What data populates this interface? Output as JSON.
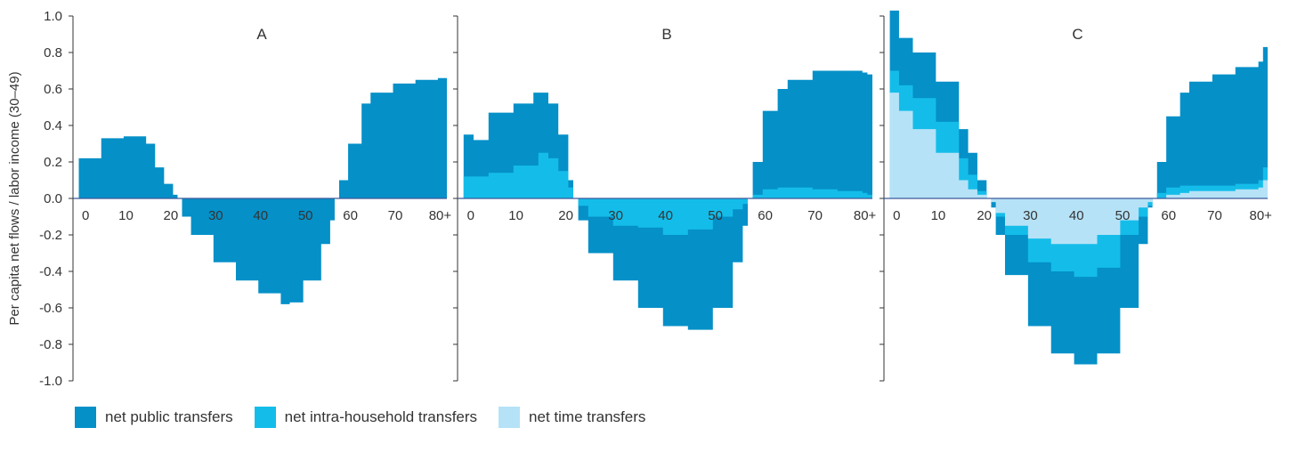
{
  "chart_data": {
    "type": "area",
    "ylabel": "Per capita net flows / labor income (30–49)",
    "ylim": [
      -1.0,
      1.0
    ],
    "yticks": [
      1.0,
      0.8,
      0.6,
      0.4,
      0.2,
      0.0,
      -0.2,
      -0.4,
      -0.6,
      -0.8,
      -1.0
    ],
    "ytick_labels": [
      "1.0",
      "0.8",
      "0.6",
      "0.4",
      "0.2",
      "0.0",
      "-0.2",
      "-0.4",
      "-0.6",
      "-0.8",
      "-1.0"
    ],
    "xlim": [
      -1,
      81.5
    ],
    "xticks": [
      0,
      10,
      20,
      30,
      40,
      50,
      60,
      70,
      80
    ],
    "xtick_labels": [
      "0",
      "10",
      "20",
      "30",
      "40",
      "50",
      "60",
      "70",
      "80+"
    ],
    "stacking": "total public transfers contain intra-household transfers, which contain time transfers",
    "legend": [
      {
        "name": "net public transfers",
        "color": "#0590c8"
      },
      {
        "name": "net intra-household transfers",
        "color": "#14bde9"
      },
      {
        "name": "net time transfers",
        "color": "#b6e2f7"
      }
    ],
    "panels": [
      {
        "title": "A",
        "layers": [
          {
            "series": "net public transfers",
            "x": [
              0,
              5,
              10,
              15,
              17,
              19,
              21,
              22,
              23,
              25,
              30,
              35,
              40,
              45,
              47,
              50,
              54,
              56,
              57,
              58,
              60,
              63,
              65,
              70,
              75,
              80,
              81
            ],
            "y": [
              0.22,
              0.33,
              0.34,
              0.3,
              0.17,
              0.08,
              0.02,
              0.0,
              -0.1,
              -0.2,
              -0.35,
              -0.45,
              -0.52,
              -0.58,
              -0.57,
              -0.45,
              -0.25,
              -0.12,
              0.0,
              0.1,
              0.3,
              0.52,
              0.58,
              0.63,
              0.65,
              0.66,
              0.66
            ]
          }
        ]
      },
      {
        "title": "B",
        "layers": [
          {
            "series": "net public transfers",
            "x": [
              0,
              2,
              5,
              10,
              14,
              17,
              19,
              21,
              22,
              23,
              25,
              30,
              35,
              40,
              45,
              50,
              54,
              56,
              57,
              58,
              60,
              63,
              65,
              70,
              75,
              80,
              81
            ],
            "y": [
              0.35,
              0.32,
              0.47,
              0.52,
              0.58,
              0.52,
              0.35,
              0.1,
              0.0,
              -0.12,
              -0.3,
              -0.45,
              -0.6,
              -0.7,
              -0.72,
              -0.6,
              -0.35,
              -0.15,
              0.0,
              0.2,
              0.48,
              0.6,
              0.65,
              0.7,
              0.7,
              0.69,
              0.68
            ]
          },
          {
            "series": "net intra-household transfers",
            "x": [
              0,
              5,
              10,
              15,
              17,
              19,
              21,
              22,
              23,
              25,
              30,
              35,
              40,
              45,
              50,
              54,
              56,
              57,
              58,
              60,
              63,
              65,
              70,
              75,
              80,
              81
            ],
            "y": [
              0.12,
              0.14,
              0.18,
              0.25,
              0.22,
              0.15,
              0.06,
              0.0,
              -0.04,
              -0.1,
              -0.15,
              -0.16,
              -0.2,
              -0.17,
              -0.1,
              -0.06,
              -0.03,
              0.0,
              0.02,
              0.05,
              0.06,
              0.06,
              0.05,
              0.04,
              0.03,
              0.02
            ]
          }
        ]
      },
      {
        "title": "C",
        "layers": [
          {
            "series": "net public transfers",
            "x": [
              0,
              2,
              5,
              10,
              15,
              17,
              19,
              21,
              22,
              23,
              25,
              30,
              35,
              40,
              45,
              50,
              54,
              56,
              57,
              58,
              60,
              63,
              65,
              70,
              75,
              80,
              81
            ],
            "y": [
              1.03,
              0.88,
              0.8,
              0.64,
              0.38,
              0.25,
              0.1,
              0.0,
              -0.05,
              -0.2,
              -0.42,
              -0.7,
              -0.85,
              -0.91,
              -0.85,
              -0.6,
              -0.25,
              -0.05,
              0.0,
              0.2,
              0.45,
              0.58,
              0.64,
              0.68,
              0.72,
              0.75,
              0.83
            ]
          },
          {
            "series": "net intra-household transfers",
            "x": [
              0,
              2,
              5,
              10,
              15,
              17,
              19,
              21,
              22,
              23,
              25,
              30,
              35,
              40,
              45,
              50,
              54,
              56,
              57,
              58,
              60,
              63,
              65,
              70,
              75,
              80,
              81
            ],
            "y": [
              0.7,
              0.62,
              0.55,
              0.42,
              0.22,
              0.13,
              0.04,
              0.0,
              -0.02,
              -0.1,
              -0.2,
              -0.35,
              -0.4,
              -0.43,
              -0.38,
              -0.2,
              -0.1,
              -0.04,
              0.0,
              0.03,
              0.06,
              0.07,
              0.07,
              0.07,
              0.08,
              0.1,
              0.17
            ]
          },
          {
            "series": "net time transfers",
            "x": [
              0,
              2,
              5,
              10,
              15,
              17,
              19,
              21,
              22,
              23,
              25,
              30,
              35,
              40,
              45,
              50,
              54,
              56,
              57,
              58,
              60,
              63,
              65,
              70,
              75,
              80,
              81
            ],
            "y": [
              0.58,
              0.48,
              0.38,
              0.25,
              0.1,
              0.05,
              0.02,
              0.0,
              -0.02,
              -0.08,
              -0.15,
              -0.22,
              -0.25,
              -0.25,
              -0.2,
              -0.12,
              -0.05,
              -0.02,
              0.0,
              0.0,
              0.02,
              0.03,
              0.04,
              0.04,
              0.05,
              0.06,
              0.1
            ]
          }
        ]
      }
    ]
  }
}
